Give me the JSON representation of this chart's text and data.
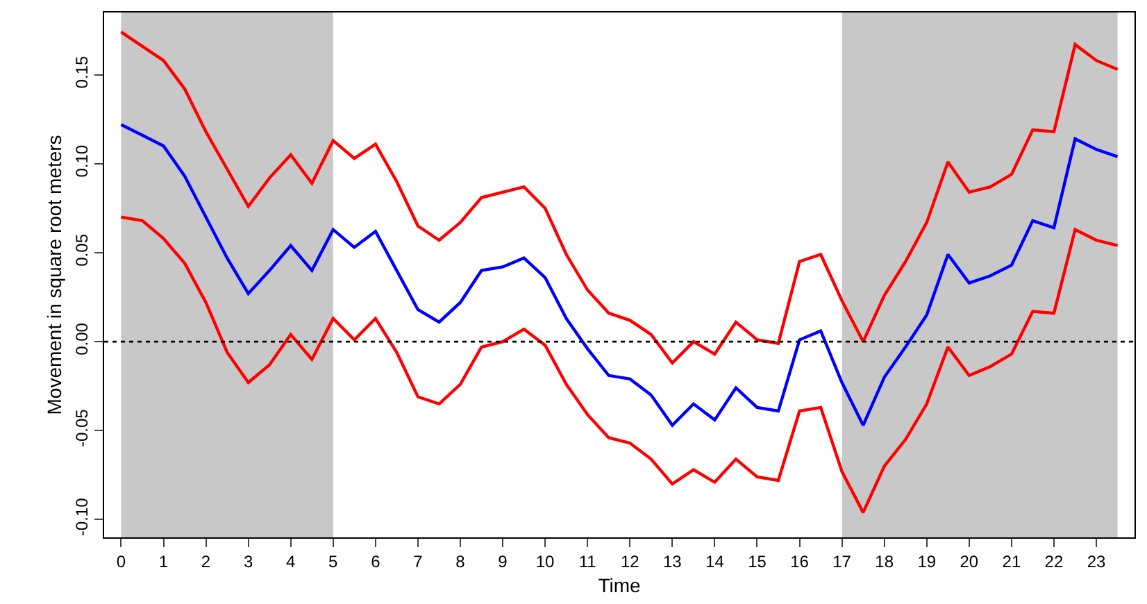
{
  "chart_data": {
    "type": "line",
    "xlabel": "Time",
    "ylabel": "Movement in square root meters",
    "x": [
      0,
      0.5,
      1,
      1.5,
      2,
      2.5,
      3,
      3.5,
      4,
      4.5,
      5,
      5.5,
      6,
      6.5,
      7,
      7.5,
      8,
      8.5,
      9,
      9.5,
      10,
      10.5,
      11,
      11.5,
      12,
      12.5,
      13,
      13.5,
      14,
      14.5,
      15,
      15.5,
      16,
      16.5,
      17,
      17.5,
      18,
      18.5,
      19,
      19.5,
      20,
      20.5,
      21,
      21.5,
      22,
      22.5,
      23,
      23.5
    ],
    "series": [
      {
        "color": "#ff0000",
        "values": [
          0.174,
          0.166,
          0.158,
          0.142,
          0.118,
          0.097,
          0.076,
          0.092,
          0.105,
          0.089,
          0.113,
          0.103,
          0.111,
          0.09,
          0.065,
          0.057,
          0.067,
          0.081,
          0.084,
          0.087,
          0.075,
          0.049,
          0.029,
          0.016,
          0.012,
          0.004,
          -0.012,
          0.0,
          -0.007,
          0.011,
          0.001,
          -0.001,
          0.045,
          0.049,
          0.023,
          0.0,
          0.026,
          0.045,
          0.067,
          0.101,
          0.084,
          0.087,
          0.094,
          0.119,
          0.118,
          0.167,
          0.158,
          0.153
        ]
      },
      {
        "color": "#0000ff",
        "values": [
          0.122,
          0.116,
          0.11,
          0.093,
          0.07,
          0.047,
          0.027,
          0.04,
          0.054,
          0.04,
          0.063,
          0.053,
          0.062,
          0.04,
          0.018,
          0.011,
          0.022,
          0.04,
          0.042,
          0.047,
          0.036,
          0.013,
          -0.004,
          -0.019,
          -0.021,
          -0.03,
          -0.047,
          -0.035,
          -0.044,
          -0.026,
          -0.037,
          -0.039,
          0.001,
          0.006,
          -0.023,
          -0.047,
          -0.02,
          -0.003,
          0.015,
          0.049,
          0.033,
          0.037,
          0.043,
          0.068,
          0.064,
          0.114,
          0.108,
          0.104
        ]
      },
      {
        "color": "#ff0000",
        "values": [
          0.07,
          0.068,
          0.058,
          0.044,
          0.022,
          -0.006,
          -0.023,
          -0.013,
          0.004,
          -0.01,
          0.013,
          0.001,
          0.013,
          -0.006,
          -0.031,
          -0.035,
          -0.024,
          -0.003,
          0.0,
          0.007,
          -0.002,
          -0.024,
          -0.041,
          -0.054,
          -0.057,
          -0.066,
          -0.08,
          -0.072,
          -0.079,
          -0.066,
          -0.076,
          -0.078,
          -0.039,
          -0.037,
          -0.073,
          -0.096,
          -0.07,
          -0.055,
          -0.035,
          -0.003,
          -0.019,
          -0.014,
          -0.007,
          0.017,
          0.016,
          0.063,
          0.057,
          0.054
        ]
      }
    ],
    "xlim": [
      -0.4,
      23.9
    ],
    "xticks": [
      0,
      1,
      2,
      3,
      4,
      5,
      6,
      7,
      8,
      9,
      10,
      11,
      12,
      13,
      14,
      15,
      16,
      17,
      18,
      19,
      20,
      21,
      22,
      23
    ],
    "ylim": [
      -0.11,
      0.185
    ],
    "yticks": [
      {
        "value": -0.1,
        "label": "-0.10"
      },
      {
        "value": -0.05,
        "label": "-0.05"
      },
      {
        "value": 0,
        "label": "0.00"
      },
      {
        "value": 0.05,
        "label": "0.05"
      },
      {
        "value": 0.1,
        "label": "0.10"
      },
      {
        "value": 0.15,
        "label": "0.15"
      }
    ],
    "ref_lines": [
      {
        "axis": "y",
        "value": 0,
        "line_style": "dotted",
        "color": "#000000"
      }
    ],
    "bands": [
      {
        "axis": "x",
        "from": 0,
        "to": 5,
        "color": "#c8c8c8"
      },
      {
        "axis": "x",
        "from": 17,
        "to": 23.5,
        "color": "#c8c8c8"
      }
    ],
    "grid": false,
    "marker": "none",
    "line_style": "solid"
  }
}
